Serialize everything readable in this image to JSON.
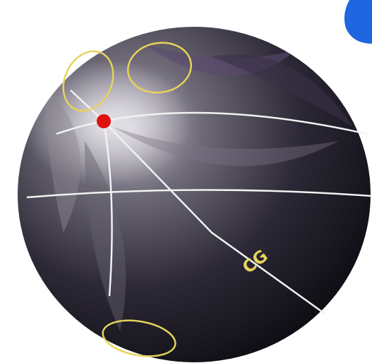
{
  "labels": [
    "CG"
  ]
}
